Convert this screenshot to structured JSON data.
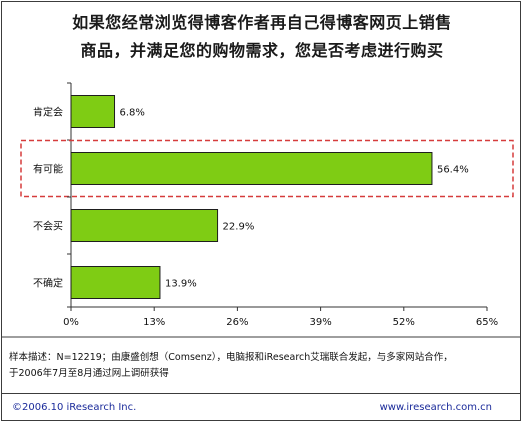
{
  "title_line1": "如果您经常浏览得博客作者再自己得博客网页上销售",
  "title_line2": "商品，并满足您的购物需求，您是否考虑进行购买",
  "chart_data": {
    "type": "bar",
    "orientation": "horizontal",
    "categories": [
      "肯定会",
      "有可能",
      "不会买",
      "不确定"
    ],
    "values": [
      6.8,
      56.4,
      22.9,
      13.9
    ],
    "value_labels": [
      "6.8%",
      "56.4%",
      "22.9%",
      "13.9%"
    ],
    "xlim": [
      0,
      65
    ],
    "xticks": [
      0,
      13,
      26,
      39,
      52,
      65
    ],
    "xtick_labels": [
      "0%",
      "13%",
      "26%",
      "39%",
      "52%",
      "65%"
    ],
    "highlighted_category": "有可能",
    "grid": false,
    "bar_color": "#7fcc14",
    "highlight_border_color": "#d63c3c"
  },
  "note_line1": "样本描述：N=12219；由康盛创想（Comsenz），电脑报和iResearch艾瑞联合发起，与多家网站合作，",
  "note_line2": "于2006年7月至8月通过网上调研获得",
  "footer_left": "©2006.10 iResearch Inc.",
  "footer_right": "www.iresearch.com.cn"
}
